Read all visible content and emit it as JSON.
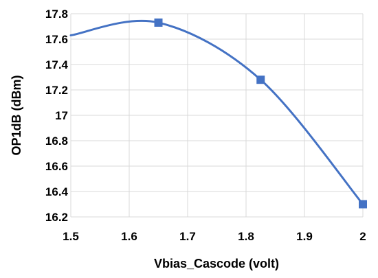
{
  "chart_data": {
    "type": "line",
    "title": "",
    "xlabel": "Vbias_Cascode (volt)",
    "ylabel": "OP1dB (dBm)",
    "xlim": [
      1.5,
      2.0
    ],
    "ylim": [
      16.2,
      17.8
    ],
    "x_ticks": [
      1.5,
      1.6,
      1.7,
      1.8,
      1.9,
      2.0
    ],
    "x_tick_labels": [
      "1.5",
      "1.6",
      "1.7",
      "1.8",
      "1.9",
      "2"
    ],
    "y_ticks": [
      16.2,
      16.4,
      16.6,
      16.8,
      17.0,
      17.2,
      17.4,
      17.6,
      17.8
    ],
    "y_tick_labels": [
      "16.2",
      "16.4",
      "16.6",
      "16.8",
      "17",
      "17.2",
      "17.4",
      "17.6",
      "17.8"
    ],
    "grid": "major gridlines on both axes",
    "legend": "none",
    "series": [
      {
        "color": "#4472C4",
        "marker": "square",
        "smooth": true,
        "x": [
          1.5,
          1.65,
          1.825,
          2.0
        ],
        "y": [
          17.63,
          17.73,
          17.28,
          16.3
        ],
        "marked_points": [
          1.65,
          1.825,
          2.0
        ]
      }
    ]
  }
}
